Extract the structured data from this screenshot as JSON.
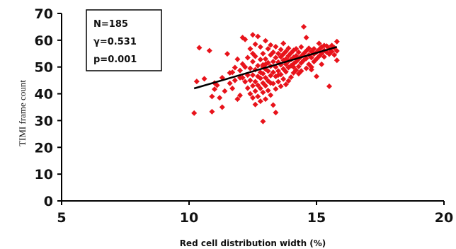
{
  "chart_data": {
    "type": "scatter",
    "xlabel": "Red cell distribution width (%)",
    "ylabel": "TIMI frame count",
    "xlim": [
      5,
      20
    ],
    "ylim": [
      0,
      70
    ],
    "xticks": [
      "5",
      "10",
      "15",
      "20"
    ],
    "yticks": [
      "0",
      "10",
      "20",
      "30",
      "40",
      "50",
      "60",
      "70"
    ],
    "grid": false,
    "legend": "none",
    "annotations": [
      "N=185",
      "γ=0.531",
      "p=0.001"
    ],
    "marker_color": "#e8131b",
    "trendline": {
      "x": [
        10.2,
        15.8
      ],
      "y": [
        42.0,
        57.5
      ],
      "color": "#000000"
    },
    "points": [
      [
        10.2,
        32.8
      ],
      [
        10.3,
        44.6
      ],
      [
        10.4,
        57.2
      ],
      [
        10.6,
        45.6
      ],
      [
        10.8,
        56.1
      ],
      [
        10.9,
        33.3
      ],
      [
        10.9,
        39.0
      ],
      [
        11.0,
        44.0
      ],
      [
        11.0,
        41.7
      ],
      [
        11.1,
        43.2
      ],
      [
        11.2,
        38.5
      ],
      [
        11.3,
        46.0
      ],
      [
        11.3,
        35.0
      ],
      [
        11.4,
        41.0
      ],
      [
        11.5,
        54.9
      ],
      [
        11.6,
        47.8
      ],
      [
        11.6,
        43.9
      ],
      [
        11.7,
        42.0
      ],
      [
        11.8,
        45.0
      ],
      [
        11.8,
        49.8
      ],
      [
        11.9,
        38.0
      ],
      [
        11.9,
        52.9
      ],
      [
        12.0,
        39.4
      ],
      [
        12.0,
        48.7
      ],
      [
        12.0,
        46.0
      ],
      [
        12.1,
        51.1
      ],
      [
        12.1,
        61.0
      ],
      [
        12.2,
        44.5
      ],
      [
        12.2,
        50.0
      ],
      [
        12.2,
        60.3
      ],
      [
        12.3,
        42.1
      ],
      [
        12.3,
        47.0
      ],
      [
        12.3,
        53.5
      ],
      [
        12.4,
        40.0
      ],
      [
        12.4,
        45.0
      ],
      [
        12.4,
        49.5
      ],
      [
        12.4,
        56.8
      ],
      [
        12.5,
        38.5
      ],
      [
        12.5,
        43.0
      ],
      [
        12.5,
        47.0
      ],
      [
        12.5,
        52.0
      ],
      [
        12.5,
        62.0
      ],
      [
        12.6,
        36.0
      ],
      [
        12.6,
        41.0
      ],
      [
        12.6,
        44.5
      ],
      [
        12.6,
        49.0
      ],
      [
        12.6,
        54.0
      ],
      [
        12.6,
        58.5
      ],
      [
        12.7,
        39.0
      ],
      [
        12.7,
        43.2
      ],
      [
        12.7,
        46.5
      ],
      [
        12.7,
        50.5
      ],
      [
        12.7,
        61.4
      ],
      [
        12.8,
        37.2
      ],
      [
        12.8,
        42.0
      ],
      [
        12.8,
        45.8
      ],
      [
        12.8,
        48.0
      ],
      [
        12.8,
        52.8
      ],
      [
        12.8,
        57.5
      ],
      [
        12.9,
        29.7
      ],
      [
        12.9,
        40.5
      ],
      [
        12.9,
        44.0
      ],
      [
        12.9,
        47.5
      ],
      [
        12.9,
        50.8
      ],
      [
        12.9,
        55.0
      ],
      [
        13.0,
        38.0
      ],
      [
        13.0,
        43.0
      ],
      [
        13.0,
        46.0
      ],
      [
        13.0,
        49.2
      ],
      [
        13.0,
        53.0
      ],
      [
        13.0,
        59.8
      ],
      [
        13.1,
        41.2
      ],
      [
        13.1,
        44.8
      ],
      [
        13.1,
        48.5
      ],
      [
        13.1,
        51.6
      ],
      [
        13.1,
        56.8
      ],
      [
        13.2,
        39.5
      ],
      [
        13.2,
        46.8
      ],
      [
        13.2,
        50.3
      ],
      [
        13.2,
        54.5
      ],
      [
        13.2,
        58.2
      ],
      [
        13.3,
        35.8
      ],
      [
        13.3,
        43.8
      ],
      [
        13.3,
        48.0
      ],
      [
        13.3,
        52.0
      ],
      [
        13.3,
        55.5
      ],
      [
        13.4,
        33.0
      ],
      [
        13.4,
        41.8
      ],
      [
        13.4,
        46.5
      ],
      [
        13.4,
        50.0
      ],
      [
        13.4,
        53.5
      ],
      [
        13.4,
        57.6
      ],
      [
        13.5,
        44.5
      ],
      [
        13.5,
        48.5
      ],
      [
        13.5,
        51.8
      ],
      [
        13.5,
        55.0
      ],
      [
        13.6,
        42.8
      ],
      [
        13.6,
        47.2
      ],
      [
        13.6,
        50.8
      ],
      [
        13.6,
        53.8
      ],
      [
        13.6,
        56.5
      ],
      [
        13.7,
        45.5
      ],
      [
        13.7,
        49.3
      ],
      [
        13.7,
        52.5
      ],
      [
        13.7,
        54.8
      ],
      [
        13.8,
        43.5
      ],
      [
        13.8,
        48.2
      ],
      [
        13.8,
        51.0
      ],
      [
        13.8,
        53.0
      ],
      [
        13.8,
        55.8
      ],
      [
        13.9,
        44.8
      ],
      [
        13.9,
        49.8
      ],
      [
        13.9,
        52.2
      ],
      [
        13.9,
        54.2
      ],
      [
        13.9,
        57.0
      ],
      [
        14.0,
        46.2
      ],
      [
        14.0,
        50.5
      ],
      [
        14.0,
        52.8
      ],
      [
        14.0,
        55.2
      ],
      [
        14.1,
        47.8
      ],
      [
        14.1,
        51.2
      ],
      [
        14.1,
        53.6
      ],
      [
        14.1,
        56.2
      ],
      [
        14.2,
        48.8
      ],
      [
        14.2,
        52.0
      ],
      [
        14.2,
        54.2
      ],
      [
        14.2,
        56.8
      ],
      [
        14.3,
        47.5
      ],
      [
        14.3,
        50.2
      ],
      [
        14.3,
        53.0
      ],
      [
        14.3,
        55.5
      ],
      [
        14.4,
        48.5
      ],
      [
        14.4,
        51.5
      ],
      [
        14.4,
        54.0
      ],
      [
        14.4,
        57.5
      ],
      [
        14.5,
        52.5
      ],
      [
        14.5,
        55.0
      ],
      [
        14.5,
        65.0
      ],
      [
        14.6,
        49.5
      ],
      [
        14.6,
        53.2
      ],
      [
        14.6,
        56.0
      ],
      [
        14.7,
        51.0
      ],
      [
        14.7,
        54.5
      ],
      [
        14.7,
        57.0
      ],
      [
        14.8,
        50.0
      ],
      [
        14.8,
        53.5
      ],
      [
        14.8,
        55.8
      ],
      [
        14.9,
        52.0
      ],
      [
        14.9,
        54.8
      ],
      [
        14.9,
        56.8
      ],
      [
        15.0,
        46.5
      ],
      [
        15.0,
        53.0
      ],
      [
        15.0,
        55.5
      ],
      [
        15.1,
        54.0
      ],
      [
        15.1,
        56.5
      ],
      [
        15.1,
        58.8
      ],
      [
        15.2,
        55.0
      ],
      [
        15.2,
        57.5
      ],
      [
        15.3,
        53.8
      ],
      [
        15.3,
        56.2
      ],
      [
        15.3,
        58.0
      ],
      [
        15.4,
        55.5
      ],
      [
        15.4,
        57.8
      ],
      [
        15.5,
        42.8
      ],
      [
        15.5,
        54.8
      ],
      [
        15.5,
        56.8
      ],
      [
        15.6,
        55.8
      ],
      [
        15.6,
        58.0
      ],
      [
        15.7,
        54.5
      ],
      [
        15.7,
        57.2
      ],
      [
        15.8,
        52.5
      ],
      [
        15.8,
        56.0
      ],
      [
        15.8,
        59.5
      ],
      [
        14.6,
        61.0
      ],
      [
        13.7,
        58.8
      ],
      [
        12.9,
        50.0
      ],
      [
        12.1,
        46.0
      ],
      [
        11.7,
        48.0
      ],
      [
        13.2,
        44.0
      ],
      [
        14.1,
        50.0
      ],
      [
        15.2,
        51.0
      ],
      [
        12.5,
        55.0
      ],
      [
        13.5,
        47.0
      ],
      [
        14.8,
        49.0
      ],
      [
        13.0,
        51.0
      ]
    ]
  }
}
